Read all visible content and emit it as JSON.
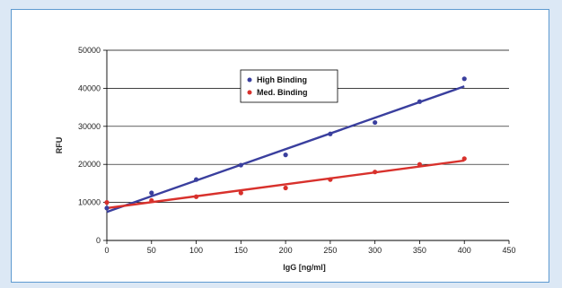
{
  "chart_data": {
    "type": "scatter",
    "xlabel": "IgG [ng/ml]",
    "ylabel": "RFU",
    "xlim": [
      0,
      450
    ],
    "ylim": [
      0,
      50000
    ],
    "x_ticks": [
      0,
      50,
      100,
      150,
      200,
      250,
      300,
      350,
      400,
      450
    ],
    "y_ticks": [
      0,
      10000,
      20000,
      30000,
      40000,
      50000
    ],
    "grid": "horizontal",
    "legend_position": "top-center",
    "series": [
      {
        "name": "High Binding",
        "color": "#3a3f9e",
        "x": [
          0,
          50,
          100,
          150,
          200,
          250,
          300,
          350,
          400
        ],
        "y": [
          8500,
          12500,
          16000,
          19800,
          22500,
          28000,
          31000,
          36500,
          42500
        ],
        "trendline": {
          "x": [
            0,
            400
          ],
          "y": [
            7500,
            40500
          ]
        }
      },
      {
        "name": "Med. Binding",
        "color": "#d8312c",
        "x": [
          0,
          50,
          100,
          150,
          200,
          250,
          300,
          350,
          400
        ],
        "y": [
          10000,
          10500,
          11500,
          12500,
          13800,
          16000,
          18000,
          20000,
          21500
        ],
        "trendline": {
          "x": [
            0,
            400
          ],
          "y": [
            8500,
            21000
          ]
        }
      }
    ]
  }
}
